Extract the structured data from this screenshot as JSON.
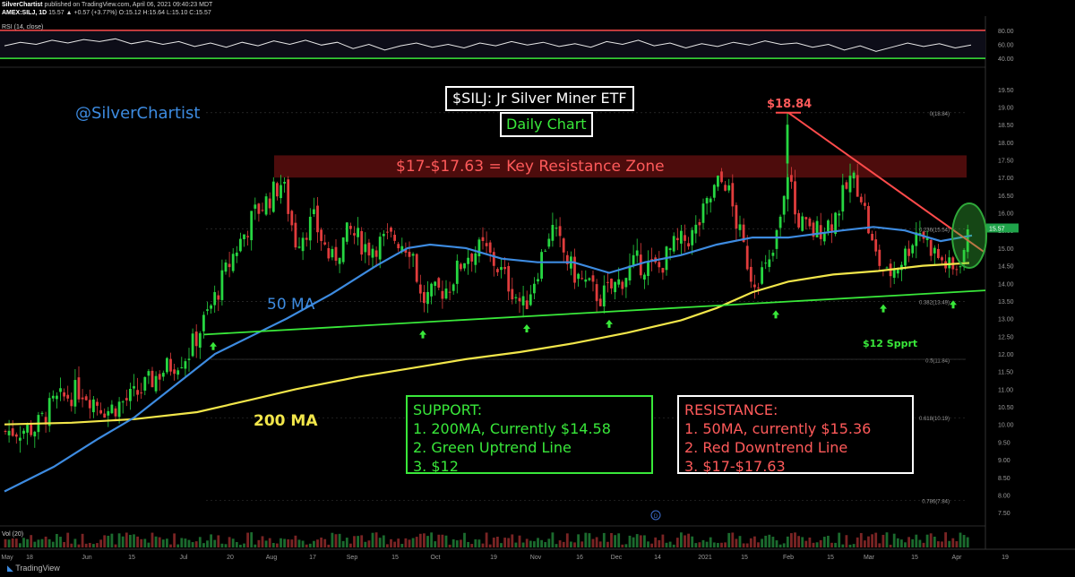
{
  "header": {
    "line1_user": "SilverChartist",
    "line1_text": "published on TradingView.com, April 06, 2021 09:40:23 MDT",
    "line2_symbol": "AMEX:SILJ, 1D",
    "line2_values": "15.57 ▲ +0.57 (+3.77%) O:15.12 H:15.64 L:15.10 C:15.57"
  },
  "rsi_label": "RSI (14, close)",
  "vol_label": "Vol (20)",
  "footer_brand": "TradingView",
  "handle": "@SilverChartist",
  "title": "$SILJ: Jr Silver Miner ETF",
  "subtitle": "Daily Chart",
  "resistance_zone_label": "$17-$17.63 = Key Resistance Zone",
  "peak_label": "$18.84",
  "ma50_label": "50 MA",
  "ma200_label": "200 MA",
  "support_level_label": "$12 Spprt",
  "support_box": {
    "heading": "SUPPORT:",
    "lines": [
      "1.  200MA, Currently $14.58",
      "2. Green Uptrend Line",
      "3.  $12"
    ]
  },
  "resistance_box": {
    "heading": "RESISTANCE:",
    "lines": [
      "1.  50MA, currently $15.36",
      "2. Red Downtrend Line",
      "3.  $17-$17.63"
    ]
  },
  "colors": {
    "bg": "#000000",
    "up": "#26d641",
    "down": "#e03c3c",
    "ma50": "#3d8be0",
    "ma200": "#f2e64a",
    "uptrend": "#39e83a",
    "downtrend": "#ff4b4b",
    "zone": "#5a0e0e",
    "rsi_line": "#e8e8e8",
    "rsi_upper": "#ff4b4b",
    "rsi_lower": "#39e83a"
  },
  "chart_data": {
    "type": "candlestick",
    "price_axis": {
      "ticks": [
        "19.50",
        "19.00",
        "18.50",
        "18.00",
        "17.50",
        "17.00",
        "16.50",
        "16.00",
        "15.50",
        "15.00",
        "14.50",
        "14.00",
        "13.50",
        "13.00",
        "12.50",
        "12.00",
        "11.50",
        "11.00",
        "10.50",
        "10.00",
        "9.50",
        "9.00",
        "8.50",
        "8.00",
        "7.50"
      ],
      "ylim": [
        7.3,
        19.8
      ],
      "current": "15.57"
    },
    "rsi_axis": {
      "ticks": [
        "80.00",
        "60.00",
        "40.00"
      ],
      "ylim": [
        30,
        85
      ]
    },
    "x_axis": {
      "ticks": [
        "May",
        "18",
        "Jun",
        "15",
        "Jul",
        "20",
        "Aug",
        "17",
        "Sep",
        "15",
        "Oct",
        "19",
        "Nov",
        "16",
        "Dec",
        "14",
        "2021",
        "15",
        "Feb",
        "15",
        "Mar",
        "15",
        "Apr",
        "19"
      ],
      "positions": [
        8,
        33,
        97,
        147,
        205,
        257,
        303,
        349,
        393,
        441,
        486,
        551,
        598,
        647,
        688,
        734,
        787,
        831,
        880,
        927,
        970,
        1021,
        1068,
        1122
      ]
    },
    "fib_levels": [
      {
        "label": "0(18.84)",
        "value": 18.84
      },
      {
        "label": "0.236(15.54)",
        "value": 15.54
      },
      {
        "label": "0.382(13.49)",
        "value": 13.49
      },
      {
        "label": "0.5(11.84)",
        "value": 11.84
      },
      {
        "label": "0.618(10.19)",
        "value": 10.19
      },
      {
        "label": "0.786(7.84)",
        "value": 7.84
      }
    ],
    "resistance_zone": [
      17.0,
      17.63
    ],
    "support_level": 12.0,
    "uptrend": {
      "from": [
        228,
        12.55
      ],
      "to": [
        1100,
        13.8
      ]
    },
    "downtrend": {
      "from": [
        880,
        18.84
      ],
      "to": [
        1098,
        14.9
      ]
    },
    "ma50": [
      [
        5,
        8.1
      ],
      [
        60,
        8.8
      ],
      [
        110,
        9.6
      ],
      [
        150,
        10.2
      ],
      [
        200,
        11.2
      ],
      [
        240,
        12.0
      ],
      [
        280,
        12.5
      ],
      [
        320,
        13.0
      ],
      [
        370,
        13.7
      ],
      [
        420,
        14.5
      ],
      [
        455,
        15.0
      ],
      [
        480,
        15.1
      ],
      [
        520,
        15.0
      ],
      [
        560,
        14.7
      ],
      [
        600,
        14.6
      ],
      [
        640,
        14.6
      ],
      [
        680,
        14.3
      ],
      [
        720,
        14.6
      ],
      [
        760,
        14.8
      ],
      [
        800,
        15.1
      ],
      [
        840,
        15.3
      ],
      [
        880,
        15.3
      ],
      [
        910,
        15.4
      ],
      [
        940,
        15.5
      ],
      [
        975,
        15.6
      ],
      [
        1010,
        15.5
      ],
      [
        1050,
        15.2
      ],
      [
        1085,
        15.36
      ]
    ],
    "ma200": [
      [
        5,
        10.0
      ],
      [
        80,
        10.05
      ],
      [
        150,
        10.15
      ],
      [
        220,
        10.35
      ],
      [
        280,
        10.7
      ],
      [
        330,
        11.0
      ],
      [
        400,
        11.35
      ],
      [
        460,
        11.6
      ],
      [
        520,
        11.85
      ],
      [
        580,
        12.05
      ],
      [
        640,
        12.3
      ],
      [
        700,
        12.6
      ],
      [
        760,
        12.95
      ],
      [
        800,
        13.3
      ],
      [
        840,
        13.75
      ],
      [
        880,
        14.05
      ],
      [
        930,
        14.25
      ],
      [
        980,
        14.35
      ],
      [
        1030,
        14.5
      ],
      [
        1082,
        14.58
      ]
    ],
    "candles_seed": 7,
    "candle_path": [
      [
        5,
        9.8
      ],
      [
        40,
        9.9
      ],
      [
        60,
        10.6
      ],
      [
        90,
        11.0
      ],
      [
        120,
        10.4
      ],
      [
        150,
        10.8
      ],
      [
        180,
        11.5
      ],
      [
        210,
        12.0
      ],
      [
        235,
        13.3
      ],
      [
        260,
        14.8
      ],
      [
        285,
        16.0
      ],
      [
        300,
        16.4
      ],
      [
        315,
        16.9
      ],
      [
        330,
        15.2
      ],
      [
        350,
        15.8
      ],
      [
        370,
        14.6
      ],
      [
        390,
        15.5
      ],
      [
        410,
        15.0
      ],
      [
        440,
        15.3
      ],
      [
        460,
        15.0
      ],
      [
        470,
        13.5
      ],
      [
        500,
        13.9
      ],
      [
        520,
        14.8
      ],
      [
        540,
        15.0
      ],
      [
        560,
        14.3
      ],
      [
        585,
        13.3
      ],
      [
        600,
        14.4
      ],
      [
        615,
        15.6
      ],
      [
        640,
        14.3
      ],
      [
        670,
        13.6
      ],
      [
        690,
        14.0
      ],
      [
        710,
        14.6
      ],
      [
        735,
        14.4
      ],
      [
        750,
        15.0
      ],
      [
        775,
        15.4
      ],
      [
        800,
        16.8
      ],
      [
        810,
        16.9
      ],
      [
        820,
        15.9
      ],
      [
        840,
        14.1
      ],
      [
        860,
        14.5
      ],
      [
        878,
        16.6
      ],
      [
        881,
        18.0
      ],
      [
        885,
        16.0
      ],
      [
        905,
        15.4
      ],
      [
        930,
        15.8
      ],
      [
        950,
        17.0
      ],
      [
        960,
        16.7
      ],
      [
        975,
        14.9
      ],
      [
        990,
        14.2
      ],
      [
        1010,
        14.8
      ],
      [
        1025,
        15.6
      ],
      [
        1045,
        14.8
      ],
      [
        1065,
        14.3
      ],
      [
        1078,
        15.1
      ],
      [
        1084,
        15.57
      ]
    ],
    "rsi_values": [
      58,
      63,
      60,
      66,
      62,
      67,
      64,
      68,
      61,
      65,
      60,
      64,
      57,
      62,
      56,
      63,
      58,
      65,
      60,
      66,
      59,
      63,
      54,
      60,
      52,
      58,
      62,
      56,
      60,
      55,
      62,
      58,
      64,
      59,
      63,
      57,
      61,
      56,
      64,
      60,
      66,
      58,
      62,
      55,
      61,
      57,
      63,
      59,
      65,
      60,
      62,
      56,
      60,
      52,
      58,
      50,
      56,
      62,
      57,
      61,
      55,
      59
    ]
  }
}
